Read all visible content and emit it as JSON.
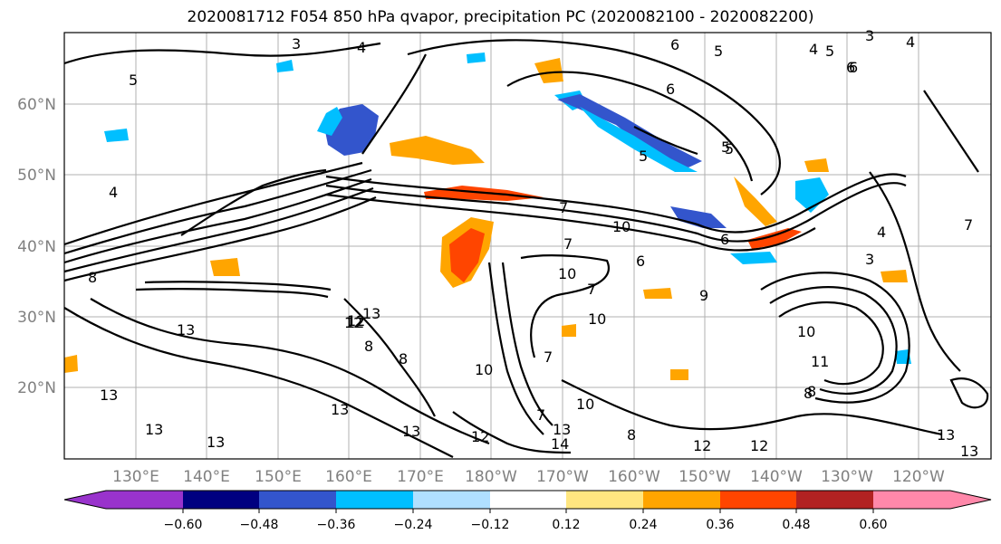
{
  "title": "2020081712 F054 850 hPa qvapor, precipitation PC (2020082100 - 2020082200)",
  "lat_labels": [
    "60°N",
    "50°N",
    "40°N",
    "30°N",
    "20°N"
  ],
  "lon_labels": [
    "130°E",
    "140°E",
    "150°E",
    "160°E",
    "170°E",
    "180°W",
    "170°W",
    "160°W",
    "150°W",
    "140°W",
    "130°W",
    "120°W"
  ],
  "contour_labels": [
    "3",
    "4",
    "5",
    "6",
    "5",
    "4",
    "3",
    "4",
    "5",
    "6",
    "4",
    "5",
    "6",
    "7",
    "5",
    "7",
    "6",
    "8",
    "7",
    "10",
    "6",
    "9",
    "7",
    "10",
    "10",
    "8",
    "13",
    "13",
    "12",
    "13",
    "13",
    "13",
    "13",
    "12",
    "14",
    "12",
    "12",
    "13",
    "13",
    "8",
    "10",
    "12",
    "10",
    "11",
    "10",
    "8",
    "7",
    "3",
    "4",
    "7",
    "13",
    "13",
    "8",
    "6",
    "12",
    "5",
    "8"
  ],
  "colorbar": {
    "tick_labels": [
      "−0.60",
      "−0.48",
      "−0.36",
      "−0.24",
      "−0.12",
      "0.12",
      "0.24",
      "0.36",
      "0.48",
      "0.60"
    ],
    "colors": [
      "#9933cc",
      "#000080",
      "#3355cc",
      "#00bfff",
      "#b0e0ff",
      "#ffffff",
      "#ffe680",
      "#ffa500",
      "#ff4500",
      "#b22222",
      "#ff88aa"
    ]
  }
}
